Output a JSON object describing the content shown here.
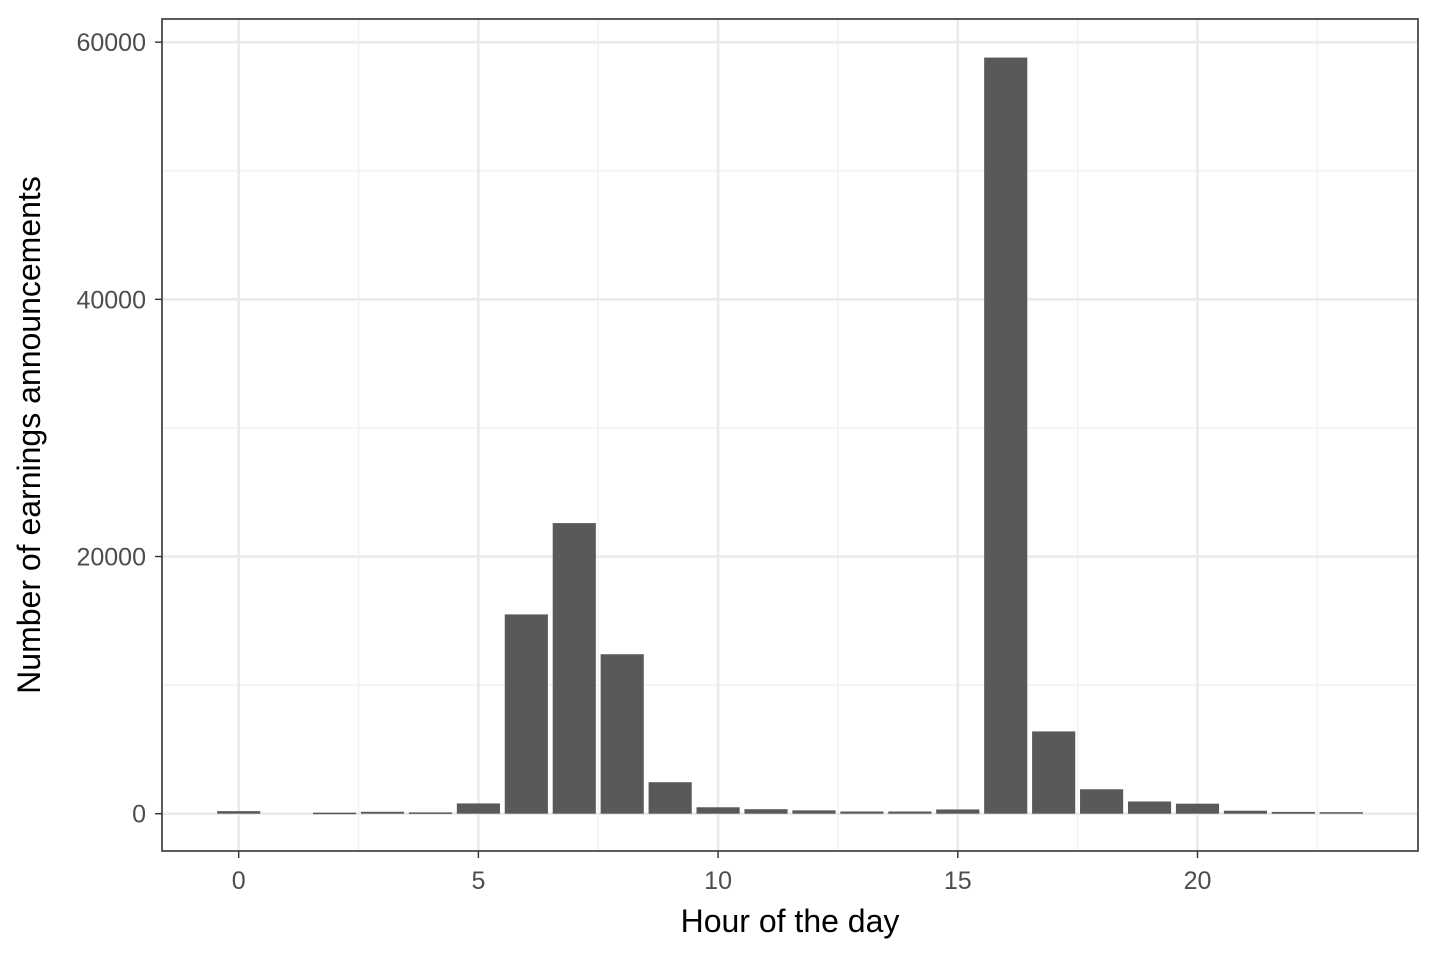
{
  "chart_data": {
    "type": "bar",
    "title": "",
    "xlabel": "Hour of the day",
    "ylabel": "Number of earnings announcements",
    "x": [
      0,
      2,
      3,
      4,
      5,
      6,
      7,
      8,
      9,
      10,
      11,
      12,
      13,
      14,
      15,
      16,
      17,
      18,
      19,
      20,
      21,
      22,
      23
    ],
    "values": [
      200,
      80,
      150,
      100,
      800,
      15500,
      22600,
      12400,
      2450,
      500,
      350,
      260,
      170,
      170,
      330,
      58800,
      6400,
      1900,
      950,
      780,
      230,
      140,
      120
    ],
    "xlim": [
      -1.6,
      24.6
    ],
    "ylim": [
      -2900,
      61800
    ],
    "x_ticks": [
      0,
      5,
      10,
      15,
      20
    ],
    "x_tick_labels": [
      "0",
      "5",
      "10",
      "15",
      "20"
    ],
    "y_ticks": [
      0,
      20000,
      40000,
      60000
    ],
    "y_tick_labels": [
      "0",
      "20000",
      "40000",
      "60000"
    ],
    "grid": true,
    "bar_color": "#595959",
    "panel_border_color": "#333333"
  }
}
